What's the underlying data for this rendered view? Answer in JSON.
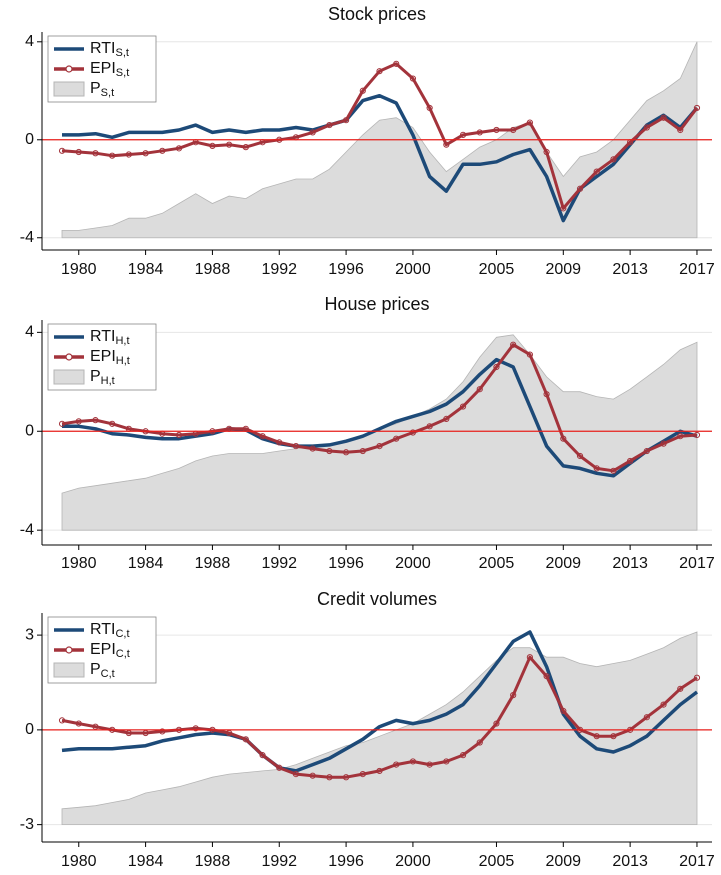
{
  "chart_data": [
    {
      "type": "line",
      "title": "Stock prices",
      "x": [
        1979,
        1980,
        1981,
        1982,
        1983,
        1984,
        1985,
        1986,
        1987,
        1988,
        1989,
        1990,
        1991,
        1992,
        1993,
        1994,
        1995,
        1996,
        1997,
        1998,
        1999,
        2000,
        2001,
        2002,
        2003,
        2004,
        2005,
        2006,
        2007,
        2008,
        2009,
        2010,
        2011,
        2012,
        2013,
        2014,
        2015,
        2016,
        2017
      ],
      "series": [
        {
          "name": "P",
          "subscript": "S,t",
          "style": "area",
          "color": "#dcdcdc",
          "values": [
            -3.7,
            -3.7,
            -3.6,
            -3.5,
            -3.2,
            -3.2,
            -3.0,
            -2.6,
            -2.2,
            -2.6,
            -2.3,
            -2.4,
            -2.0,
            -1.8,
            -1.6,
            -1.6,
            -1.2,
            -0.5,
            0.2,
            0.8,
            0.9,
            0.5,
            -0.5,
            -1.3,
            -0.8,
            -0.3,
            0.0,
            0.5,
            0.7,
            -0.5,
            -1.5,
            -0.7,
            -0.5,
            0.0,
            0.8,
            1.6,
            2.0,
            2.5,
            4.0
          ]
        },
        {
          "name": "RTI",
          "subscript": "S,t",
          "style": "line",
          "color": "#1d4a78",
          "values": [
            0.2,
            0.2,
            0.25,
            0.1,
            0.3,
            0.3,
            0.3,
            0.4,
            0.6,
            0.3,
            0.4,
            0.3,
            0.4,
            0.4,
            0.5,
            0.4,
            0.6,
            0.8,
            1.6,
            1.8,
            1.5,
            0.2,
            -1.5,
            -2.1,
            -1.0,
            -1.0,
            -0.9,
            -0.6,
            -0.4,
            -1.5,
            -3.3,
            -2.0,
            -1.5,
            -1.0,
            -0.2,
            0.6,
            1.0,
            0.5,
            1.3
          ]
        },
        {
          "name": "EPI",
          "subscript": "S,t",
          "style": "line-marker",
          "color": "#a3333b",
          "values": [
            -0.45,
            -0.5,
            -0.55,
            -0.65,
            -0.6,
            -0.55,
            -0.45,
            -0.35,
            -0.1,
            -0.25,
            -0.2,
            -0.3,
            -0.1,
            0.0,
            0.1,
            0.3,
            0.6,
            0.8,
            2.0,
            2.8,
            3.1,
            2.5,
            1.3,
            -0.2,
            0.2,
            0.3,
            0.4,
            0.4,
            0.7,
            -0.5,
            -2.8,
            -2.0,
            -1.3,
            -0.8,
            -0.1,
            0.5,
            0.9,
            0.4,
            1.3
          ]
        }
      ],
      "legend_order": [
        1,
        2,
        0
      ],
      "xlim": [
        1977.8,
        2017.9
      ],
      "xticks": [
        1980,
        1984,
        1988,
        1992,
        1996,
        2000,
        2005,
        2009,
        2013,
        2017
      ],
      "ylim": [
        -4.5,
        4.4
      ],
      "yticks": [
        -4,
        0,
        4
      ],
      "grid": true,
      "hline": {
        "value": 0,
        "color": "#e8201c"
      },
      "legend": "upper left"
    },
    {
      "type": "line",
      "title": "House prices",
      "x": [
        1979,
        1980,
        1981,
        1982,
        1983,
        1984,
        1985,
        1986,
        1987,
        1988,
        1989,
        1990,
        1991,
        1992,
        1993,
        1994,
        1995,
        1996,
        1997,
        1998,
        1999,
        2000,
        2001,
        2002,
        2003,
        2004,
        2005,
        2006,
        2007,
        2008,
        2009,
        2010,
        2011,
        2012,
        2013,
        2014,
        2015,
        2016,
        2017
      ],
      "series": [
        {
          "name": "P",
          "subscript": "H,t",
          "style": "area",
          "color": "#dcdcdc",
          "values": [
            -2.5,
            -2.3,
            -2.2,
            -2.1,
            -2.0,
            -1.9,
            -1.7,
            -1.5,
            -1.2,
            -1.0,
            -0.9,
            -0.9,
            -0.9,
            -0.8,
            -0.7,
            -0.6,
            -0.6,
            -0.4,
            -0.2,
            0.1,
            0.3,
            0.6,
            0.9,
            1.3,
            2.0,
            3.0,
            3.8,
            3.9,
            3.1,
            2.2,
            1.6,
            1.6,
            1.4,
            1.3,
            1.7,
            2.2,
            2.7,
            3.3,
            3.6
          ]
        },
        {
          "name": "RTI",
          "subscript": "H,t",
          "style": "line",
          "color": "#1d4a78",
          "values": [
            0.2,
            0.2,
            0.1,
            -0.1,
            -0.15,
            -0.25,
            -0.3,
            -0.3,
            -0.2,
            -0.1,
            0.1,
            0.05,
            -0.3,
            -0.5,
            -0.6,
            -0.6,
            -0.55,
            -0.4,
            -0.2,
            0.1,
            0.4,
            0.6,
            0.8,
            1.1,
            1.6,
            2.3,
            2.9,
            2.6,
            1.0,
            -0.6,
            -1.4,
            -1.5,
            -1.7,
            -1.8,
            -1.3,
            -0.8,
            -0.4,
            0.0,
            -0.2
          ]
        },
        {
          "name": "EPI",
          "subscript": "H,t",
          "style": "line-marker",
          "color": "#a3333b",
          "values": [
            0.3,
            0.4,
            0.45,
            0.3,
            0.1,
            0.0,
            -0.1,
            -0.15,
            -0.1,
            0.0,
            0.1,
            0.1,
            -0.2,
            -0.45,
            -0.6,
            -0.7,
            -0.8,
            -0.85,
            -0.8,
            -0.6,
            -0.3,
            -0.05,
            0.2,
            0.5,
            1.0,
            1.7,
            2.6,
            3.5,
            3.1,
            1.5,
            -0.3,
            -1.0,
            -1.5,
            -1.6,
            -1.2,
            -0.8,
            -0.5,
            -0.2,
            -0.15
          ]
        }
      ],
      "legend_order": [
        1,
        2,
        0
      ],
      "xlim": [
        1977.8,
        2017.9
      ],
      "xticks": [
        1980,
        1984,
        1988,
        1992,
        1996,
        2000,
        2005,
        2009,
        2013,
        2017
      ],
      "ylim": [
        -4.6,
        4.5
      ],
      "yticks": [
        -4,
        0,
        4
      ],
      "grid": true,
      "hline": {
        "value": 0,
        "color": "#e8201c"
      },
      "legend": "upper left"
    },
    {
      "type": "line",
      "title": "Credit volumes",
      "x": [
        1979,
        1980,
        1981,
        1982,
        1983,
        1984,
        1985,
        1986,
        1987,
        1988,
        1989,
        1990,
        1991,
        1992,
        1993,
        1994,
        1995,
        1996,
        1997,
        1998,
        1999,
        2000,
        2001,
        2002,
        2003,
        2004,
        2005,
        2006,
        2007,
        2008,
        2009,
        2010,
        2011,
        2012,
        2013,
        2014,
        2015,
        2016,
        2017
      ],
      "series": [
        {
          "name": "P",
          "subscript": "C,t",
          "style": "area",
          "color": "#dcdcdc",
          "values": [
            -2.5,
            -2.45,
            -2.4,
            -2.3,
            -2.2,
            -2.0,
            -1.9,
            -1.8,
            -1.65,
            -1.5,
            -1.4,
            -1.35,
            -1.3,
            -1.25,
            -1.1,
            -0.9,
            -0.7,
            -0.5,
            -0.4,
            -0.2,
            0.0,
            0.2,
            0.5,
            0.8,
            1.2,
            1.7,
            2.2,
            2.6,
            2.6,
            2.3,
            2.3,
            2.1,
            2.0,
            2.1,
            2.2,
            2.4,
            2.6,
            2.9,
            3.1
          ]
        },
        {
          "name": "RTI",
          "subscript": "C,t",
          "style": "line",
          "color": "#1d4a78",
          "values": [
            -0.65,
            -0.6,
            -0.6,
            -0.6,
            -0.55,
            -0.5,
            -0.35,
            -0.25,
            -0.15,
            -0.1,
            -0.15,
            -0.3,
            -0.8,
            -1.2,
            -1.3,
            -1.1,
            -0.9,
            -0.6,
            -0.3,
            0.1,
            0.3,
            0.2,
            0.3,
            0.5,
            0.8,
            1.4,
            2.1,
            2.8,
            3.1,
            2.0,
            0.5,
            -0.2,
            -0.6,
            -0.7,
            -0.5,
            -0.2,
            0.3,
            0.8,
            1.2
          ]
        },
        {
          "name": "EPI",
          "subscript": "C,t",
          "style": "line-marker",
          "color": "#a3333b",
          "values": [
            0.3,
            0.2,
            0.1,
            0.0,
            -0.1,
            -0.1,
            -0.05,
            0.0,
            0.05,
            0.0,
            -0.1,
            -0.3,
            -0.8,
            -1.2,
            -1.4,
            -1.45,
            -1.5,
            -1.5,
            -1.4,
            -1.3,
            -1.1,
            -1.0,
            -1.1,
            -1.0,
            -0.8,
            -0.4,
            0.2,
            1.1,
            2.3,
            1.7,
            0.6,
            0.0,
            -0.2,
            -0.2,
            0.0,
            0.4,
            0.8,
            1.3,
            1.65
          ]
        }
      ],
      "legend_order": [
        1,
        2,
        0
      ],
      "xlim": [
        1977.8,
        2017.9
      ],
      "xticks": [
        1980,
        1984,
        1988,
        1992,
        1996,
        2000,
        2005,
        2009,
        2013,
        2017
      ],
      "ylim": [
        -3.55,
        3.7
      ],
      "yticks": [
        -3,
        0,
        3
      ],
      "grid": true,
      "hline": {
        "value": 0,
        "color": "#e8201c"
      },
      "legend": "upper left"
    }
  ]
}
